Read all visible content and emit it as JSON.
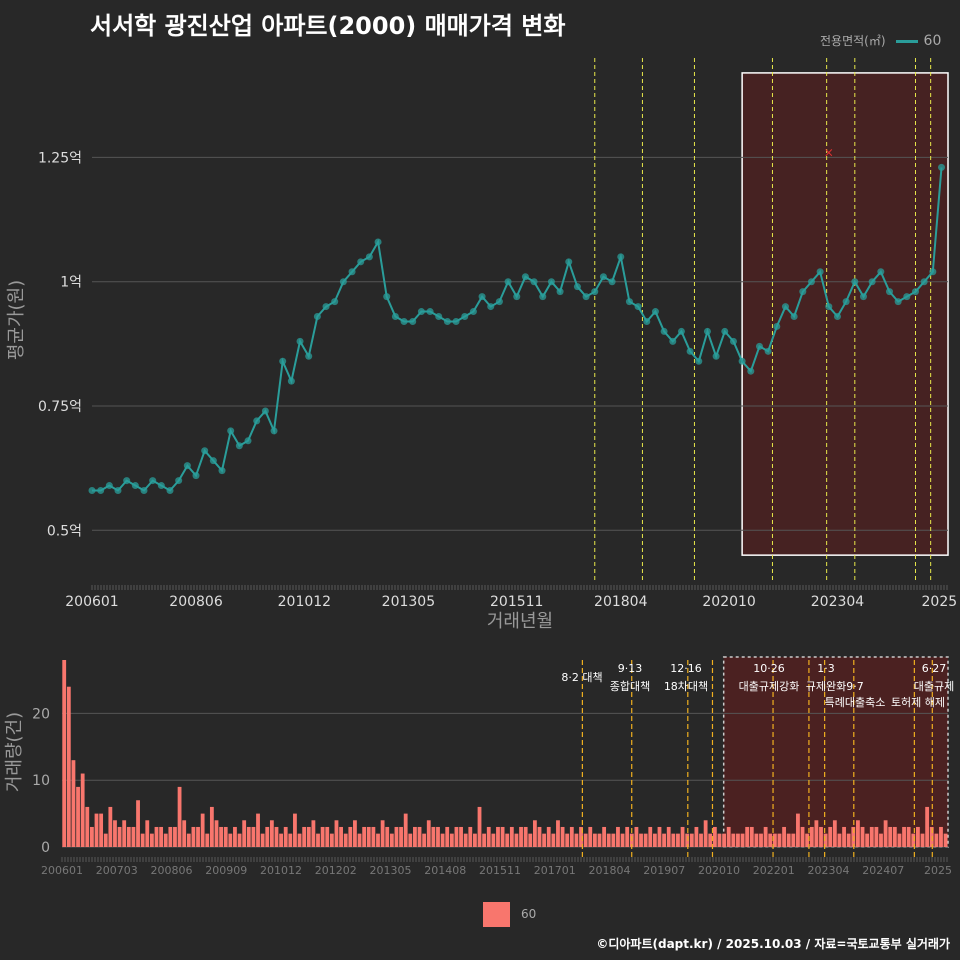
{
  "title": "서서학 광진산업 아파트(2000) 매매가격 변화",
  "credit": "©디아파트(dapt.kr) / 2025.10.03 / 자료=국토교통부 실거래가",
  "legend_top": {
    "title": "전용면적(㎡)",
    "label": "60"
  },
  "legend_bottom": {
    "label": "60"
  },
  "colors": {
    "background": "#282828",
    "price": "#2a9d9a",
    "volume": "#f8766d",
    "event_line_top": "#e8e84a",
    "event_line_bottom": "#f0b020",
    "highlight": "#5a1e1e"
  },
  "chart_data": [
    {
      "type": "line",
      "title": "서서학 광진산업 아파트(2000) 매매가격 변화",
      "xlabel": "거래년월",
      "ylabel": "평균가(원)",
      "ylim": [
        0.4,
        1.45
      ],
      "xlim": [
        2006.0,
        2025.75
      ],
      "x_ticks": [
        "200601",
        "200806",
        "201012",
        "201305",
        "201511",
        "201804",
        "202010",
        "202304",
        "2025"
      ],
      "y_ticks": [
        "0.5억",
        "0.75억",
        "1억",
        "1.25억"
      ],
      "y_tick_values": [
        0.5,
        0.75,
        1.0,
        1.25
      ],
      "series": [
        {
          "name": "60",
          "x": [
            2006.0,
            2006.2,
            2006.4,
            2006.6,
            2006.8,
            2007.0,
            2007.2,
            2007.4,
            2007.6,
            2007.8,
            2008.0,
            2008.2,
            2008.4,
            2008.6,
            2008.8,
            2009.0,
            2009.2,
            2009.4,
            2009.6,
            2009.8,
            2010.0,
            2010.2,
            2010.4,
            2010.6,
            2010.8,
            2011.0,
            2011.2,
            2011.4,
            2011.6,
            2011.8,
            2012.0,
            2012.2,
            2012.4,
            2012.6,
            2012.8,
            2013.0,
            2013.2,
            2013.4,
            2013.6,
            2013.8,
            2014.0,
            2014.2,
            2014.4,
            2014.6,
            2014.8,
            2015.0,
            2015.2,
            2015.4,
            2015.6,
            2015.8,
            2016.0,
            2016.2,
            2016.4,
            2016.6,
            2016.8,
            2017.0,
            2017.2,
            2017.4,
            2017.6,
            2017.8,
            2018.0,
            2018.2,
            2018.4,
            2018.6,
            2018.8,
            2019.0,
            2019.2,
            2019.4,
            2019.6,
            2019.8,
            2020.0,
            2020.2,
            2020.4,
            2020.6,
            2020.8,
            2021.0,
            2021.2,
            2021.4,
            2021.6,
            2021.8,
            2022.0,
            2022.2,
            2022.4,
            2022.6,
            2022.8,
            2023.0,
            2023.2,
            2023.4,
            2023.6,
            2023.8,
            2024.0,
            2024.2,
            2024.4,
            2024.6,
            2024.8,
            2025.0,
            2025.2,
            2025.4,
            2025.6
          ],
          "values": [
            0.58,
            0.58,
            0.59,
            0.58,
            0.6,
            0.59,
            0.58,
            0.6,
            0.59,
            0.58,
            0.6,
            0.63,
            0.61,
            0.66,
            0.64,
            0.62,
            0.7,
            0.67,
            0.68,
            0.72,
            0.74,
            0.7,
            0.84,
            0.8,
            0.88,
            0.85,
            0.93,
            0.95,
            0.96,
            1.0,
            1.02,
            1.04,
            1.05,
            1.08,
            0.97,
            0.93,
            0.92,
            0.92,
            0.94,
            0.94,
            0.93,
            0.92,
            0.92,
            0.93,
            0.94,
            0.97,
            0.95,
            0.96,
            1.0,
            0.97,
            1.01,
            1.0,
            0.97,
            1.0,
            0.98,
            1.04,
            0.99,
            0.97,
            0.98,
            1.01,
            1.0,
            1.05,
            0.96,
            0.95,
            0.92,
            0.94,
            0.9,
            0.88,
            0.9,
            0.86,
            0.84,
            0.9,
            0.85,
            0.9,
            0.88,
            0.84,
            0.82,
            0.87,
            0.86,
            0.91,
            0.95,
            0.93,
            0.98,
            1.0,
            1.02,
            0.95,
            0.93,
            0.96,
            1.0,
            0.97,
            1.0,
            1.02,
            0.98,
            0.96,
            0.97,
            0.98,
            1.0,
            1.02,
            1.23
          ]
        }
      ],
      "events": [
        {
          "x": 2017.6,
          "label": ""
        },
        {
          "x": 2018.7,
          "label": ""
        },
        {
          "x": 2019.9,
          "label": ""
        },
        {
          "x": 2021.7,
          "label": ""
        },
        {
          "x": 2022.95,
          "label": ""
        },
        {
          "x": 2023.6,
          "label": ""
        },
        {
          "x": 2025.0,
          "label": ""
        },
        {
          "x": 2025.35,
          "label": ""
        }
      ],
      "highlight_range": {
        "x": [
          2021.0,
          2025.75
        ],
        "y": [
          0.45,
          1.42
        ]
      },
      "marker_cross": {
        "x": 2023.0,
        "y": 1.26
      }
    },
    {
      "type": "bar",
      "xlabel": "",
      "ylabel": "거래량(건)",
      "ylim": [
        0,
        28
      ],
      "x_ticks": [
        "200601",
        "200703",
        "200806",
        "200909",
        "201012",
        "201202",
        "201305",
        "201408",
        "201511",
        "201701",
        "201804",
        "201907",
        "202010",
        "202201",
        "202304",
        "202407",
        "2025"
      ],
      "y_ticks": [
        "0",
        "10",
        "20"
      ],
      "y_tick_values": [
        0,
        10,
        20
      ],
      "series": [
        {
          "name": "60",
          "values": [
            28,
            24,
            13,
            9,
            11,
            6,
            3,
            5,
            5,
            2,
            6,
            4,
            3,
            4,
            3,
            3,
            7,
            2,
            4,
            2,
            3,
            3,
            2,
            3,
            3,
            9,
            4,
            2,
            3,
            3,
            5,
            2,
            6,
            4,
            3,
            3,
            2,
            3,
            2,
            4,
            3,
            3,
            5,
            2,
            3,
            4,
            3,
            2,
            3,
            2,
            5,
            2,
            3,
            3,
            4,
            2,
            3,
            3,
            2,
            4,
            3,
            2,
            3,
            4,
            2,
            3,
            3,
            3,
            2,
            4,
            3,
            2,
            3,
            3,
            5,
            2,
            3,
            3,
            2,
            4,
            3,
            3,
            2,
            3,
            2,
            3,
            3,
            2,
            3,
            2,
            6,
            2,
            3,
            2,
            3,
            3,
            2,
            3,
            2,
            3,
            3,
            2,
            4,
            3,
            2,
            3,
            2,
            4,
            3,
            2,
            3,
            2,
            3,
            2,
            3,
            2,
            2,
            3,
            2,
            2,
            3,
            2,
            3,
            2,
            3,
            2,
            2,
            3,
            2,
            3,
            2,
            3,
            2,
            2,
            3,
            2,
            2,
            3,
            2,
            4,
            2,
            3,
            2,
            2,
            3,
            2,
            2,
            2,
            3,
            3,
            2,
            2,
            3,
            2,
            2,
            2,
            3,
            2,
            2,
            5,
            3,
            2,
            3,
            4,
            3,
            2,
            3,
            4,
            2,
            3,
            2,
            3,
            4,
            3,
            2,
            3,
            3,
            2,
            4,
            3,
            3,
            2,
            3,
            3,
            2,
            3,
            2,
            6,
            3,
            2,
            3,
            2
          ]
        }
      ],
      "events": [
        {
          "x": 2017.6,
          "label": "8·2 대책"
        },
        {
          "x": 2018.7,
          "label": "9·13 종합대책"
        },
        {
          "x": 2019.95,
          "label": "12·16 18차대책"
        },
        {
          "x": 2020.5,
          "label": ""
        },
        {
          "x": 2021.85,
          "label": "10·26 대출규제강화"
        },
        {
          "x": 2022.65,
          "label": ""
        },
        {
          "x": 2023.0,
          "label": "1·3 규제완화"
        },
        {
          "x": 2023.65,
          "label": "9·7 특례대출축소"
        },
        {
          "x": 2025.0,
          "label": "토허제 해제"
        },
        {
          "x": 2025.4,
          "label": "6·27 대출규제"
        }
      ]
    }
  ]
}
